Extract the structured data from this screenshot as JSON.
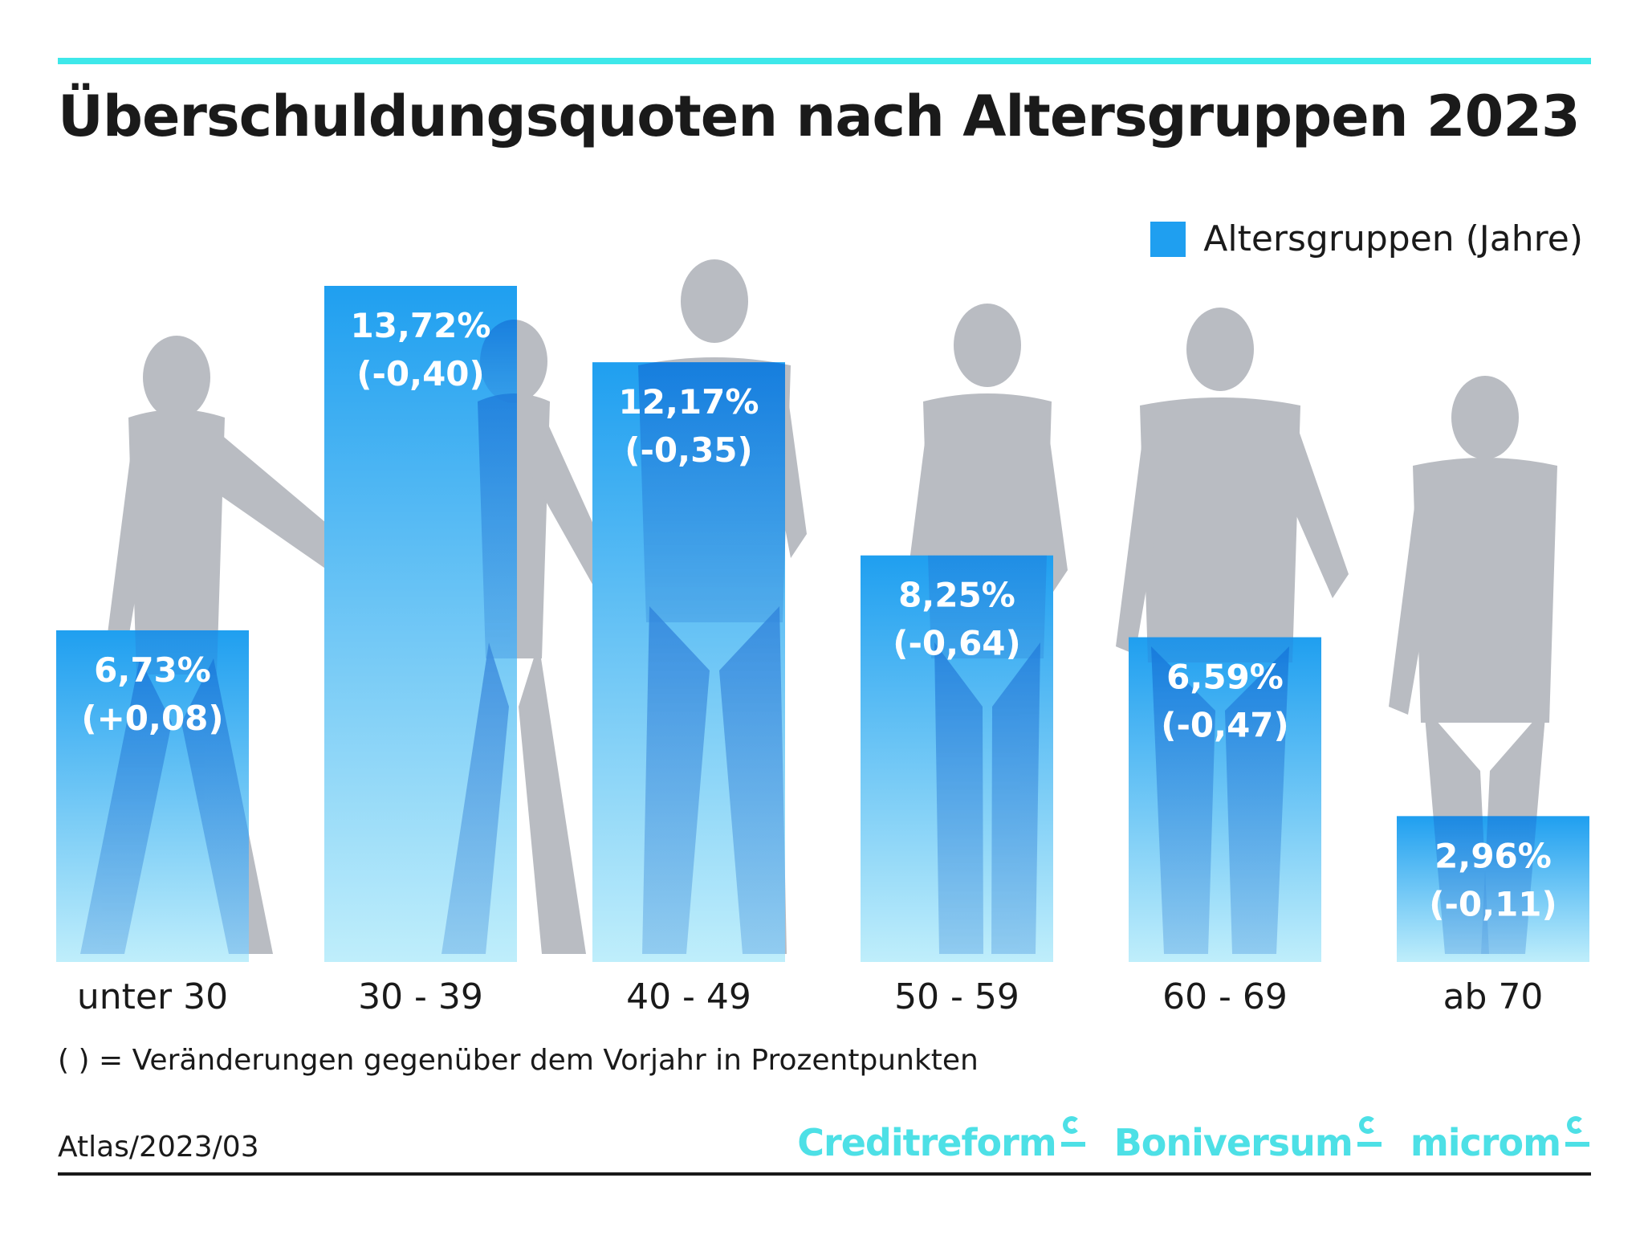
{
  "title": "Überschuldungsquoten nach Altersgruppen 2023",
  "legend": {
    "label": "Altersgruppen (Jahre)",
    "color": "#1f9ff0"
  },
  "note": "( ) =  Veränderungen gegenüber dem Vorjahr in Prozentpunkten",
  "source": "Atlas/2023/03",
  "brands": [
    "Creditreform",
    "Boniversum",
    "microm"
  ],
  "colors": {
    "accent": "#3ee8ea",
    "bar_top": "#1f9ff0",
    "bar_bottom": "#bfeefb",
    "silhouette": "#b9bcc2",
    "brand": "#4de0e6"
  },
  "chart_data": {
    "type": "bar",
    "categories": [
      "unter 30",
      "30 - 39",
      "40 - 49",
      "50 - 59",
      "60 - 69",
      "ab 70"
    ],
    "values": [
      6.73,
      13.72,
      12.17,
      8.25,
      6.59,
      2.96
    ],
    "value_labels": [
      "6,73%",
      "13,72%",
      "12,17%",
      "8,25%",
      "6,59%",
      "2,96%"
    ],
    "changes": [
      0.08,
      -0.4,
      -0.35,
      -0.64,
      -0.47,
      -0.11
    ],
    "change_labels": [
      "(+0,08)",
      "(-0,40)",
      "(-0,35)",
      "(-0,64)",
      "(-0,47)",
      "(-0,11)"
    ],
    "ylim": [
      0,
      13.72
    ],
    "grid": false,
    "legend_position": "top-right"
  }
}
